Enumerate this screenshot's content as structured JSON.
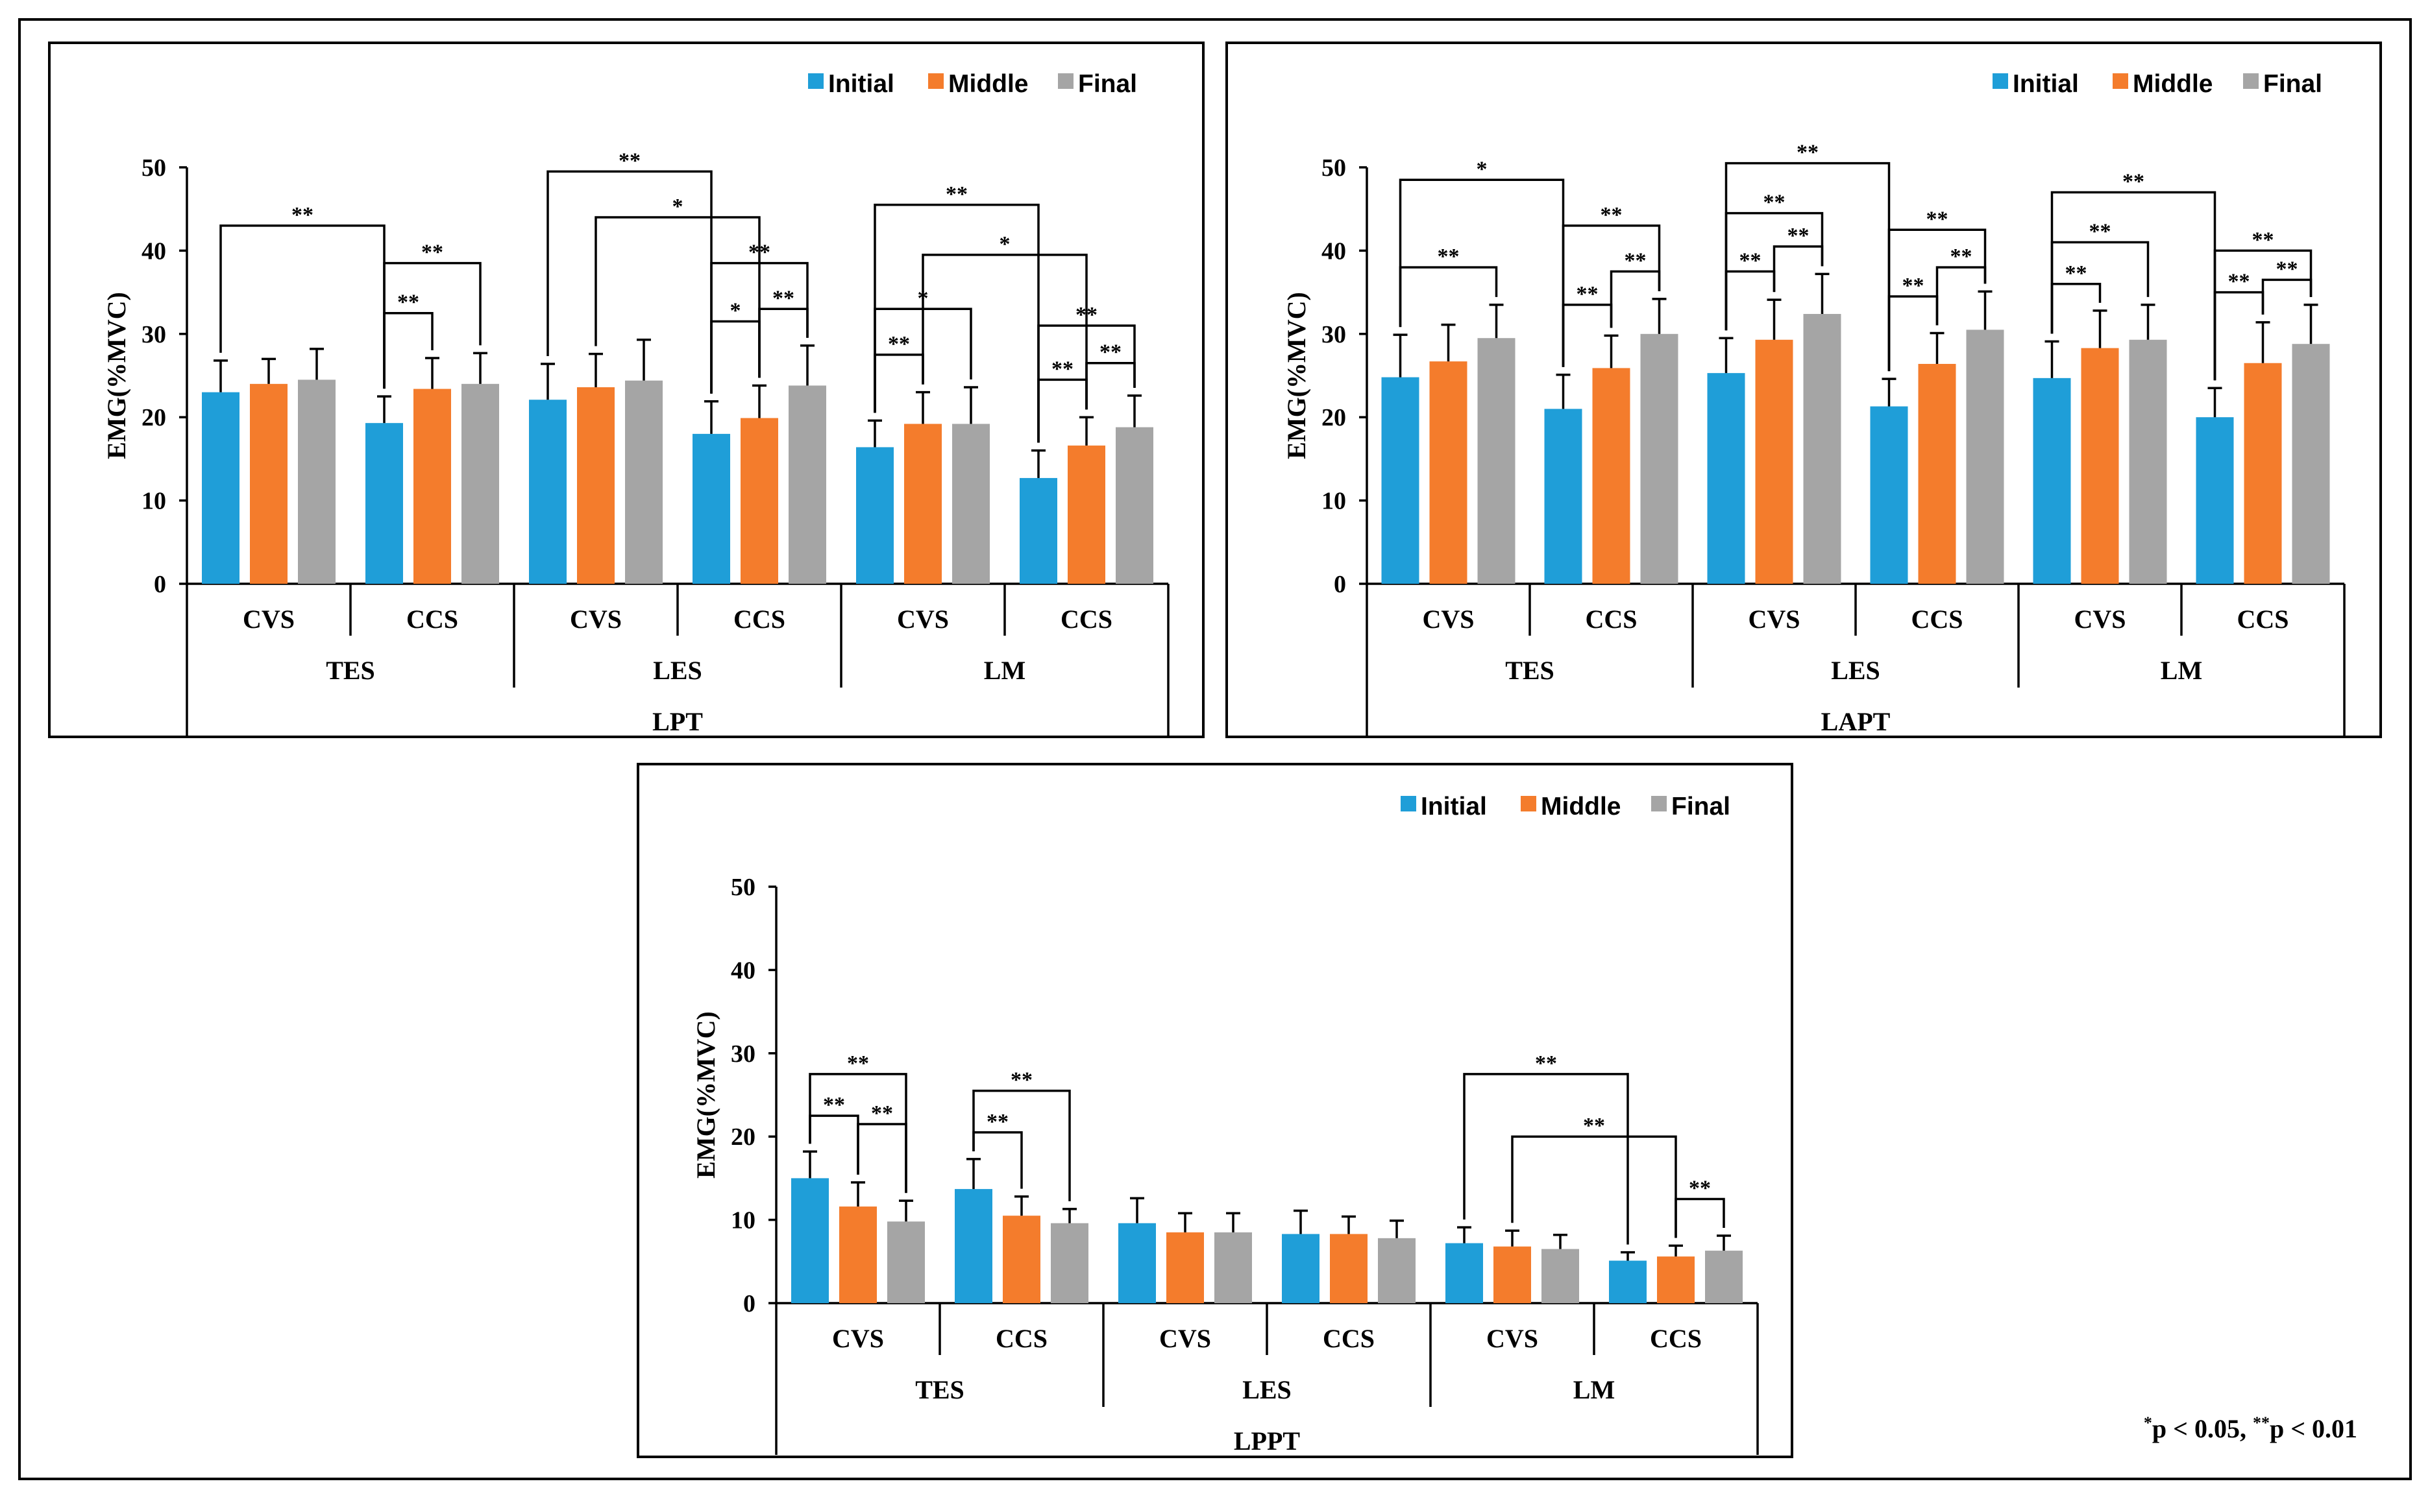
{
  "legend": [
    "Initial",
    "Middle",
    "Final"
  ],
  "colors": {
    "Initial": "#1f9ed8",
    "Middle": "#f47c2c",
    "Final": "#a5a5a5"
  },
  "footnote": {
    "mark1": "*",
    "text1": "p < 0.05, ",
    "mark2": "**",
    "text2": "p < 0.01"
  },
  "chart_data": [
    {
      "type": "bar",
      "title": "LPT",
      "ylabel": "EMG(%MVC)",
      "ylim": [
        0,
        50
      ],
      "yticks": [
        0,
        10,
        20,
        30,
        40,
        50
      ],
      "muscles": [
        "TES",
        "LES",
        "LM"
      ],
      "conditions": [
        "CVS",
        "CCS"
      ],
      "series": [
        {
          "name": "Initial",
          "values": [
            23.0,
            19.3,
            22.1,
            18.0,
            16.4,
            12.7
          ],
          "errors": [
            3.8,
            3.2,
            4.3,
            3.9,
            3.2,
            3.3
          ]
        },
        {
          "name": "Middle",
          "values": [
            24.0,
            23.4,
            23.6,
            19.9,
            19.2,
            16.6
          ],
          "errors": [
            3.0,
            3.7,
            4.0,
            3.9,
            3.8,
            3.4
          ]
        },
        {
          "name": "Final",
          "values": [
            24.5,
            24.0,
            24.4,
            23.8,
            19.2,
            18.8
          ],
          "errors": [
            3.7,
            3.7,
            4.9,
            4.8,
            4.4,
            3.8
          ]
        }
      ],
      "significance": [
        {
          "from": [
            0,
            0
          ],
          "to": [
            1,
            0
          ],
          "label": "**",
          "y": 43.0
        },
        {
          "from": [
            1,
            0
          ],
          "to": [
            1,
            1
          ],
          "label": "**",
          "y": 32.5
        },
        {
          "from": [
            1,
            0
          ],
          "to": [
            1,
            2
          ],
          "label": "**",
          "y": 38.5
        },
        {
          "from": [
            2,
            0
          ],
          "to": [
            3,
            0
          ],
          "label": "**",
          "y": 49.5
        },
        {
          "from": [
            2,
            1
          ],
          "to": [
            3,
            1
          ],
          "label": "*",
          "y": 44.0
        },
        {
          "from": [
            3,
            0
          ],
          "to": [
            3,
            1
          ],
          "label": "*",
          "y": 31.5
        },
        {
          "from": [
            3,
            0
          ],
          "to": [
            3,
            2
          ],
          "label": "**",
          "y": 38.5
        },
        {
          "from": [
            3,
            1
          ],
          "to": [
            3,
            2
          ],
          "label": "**",
          "y": 33.0
        },
        {
          "from": [
            4,
            0
          ],
          "to": [
            5,
            0
          ],
          "label": "**",
          "y": 45.5
        },
        {
          "from": [
            4,
            1
          ],
          "to": [
            5,
            1
          ],
          "label": "*",
          "y": 39.5
        },
        {
          "from": [
            4,
            0
          ],
          "to": [
            4,
            1
          ],
          "label": "**",
          "y": 27.5
        },
        {
          "from": [
            4,
            0
          ],
          "to": [
            4,
            2
          ],
          "label": "*",
          "y": 33.0
        },
        {
          "from": [
            5,
            0
          ],
          "to": [
            5,
            1
          ],
          "label": "**",
          "y": 24.5
        },
        {
          "from": [
            5,
            0
          ],
          "to": [
            5,
            2
          ],
          "label": "**",
          "y": 31.0
        },
        {
          "from": [
            5,
            1
          ],
          "to": [
            5,
            2
          ],
          "label": "**",
          "y": 26.5
        }
      ]
    },
    {
      "type": "bar",
      "title": "LAPT",
      "ylabel": "EMG(%MVC)",
      "ylim": [
        0,
        50
      ],
      "yticks": [
        0,
        10,
        20,
        30,
        40,
        50
      ],
      "muscles": [
        "TES",
        "LES",
        "LM"
      ],
      "conditions": [
        "CVS",
        "CCS"
      ],
      "series": [
        {
          "name": "Initial",
          "values": [
            24.8,
            21.0,
            25.3,
            21.3,
            24.7,
            20.0
          ],
          "errors": [
            5.1,
            4.1,
            4.2,
            3.3,
            4.4,
            3.5
          ]
        },
        {
          "name": "Middle",
          "values": [
            26.7,
            25.9,
            29.3,
            26.4,
            28.3,
            26.5
          ],
          "errors": [
            4.4,
            3.9,
            4.8,
            3.7,
            4.5,
            4.9
          ]
        },
        {
          "name": "Final",
          "values": [
            29.5,
            30.0,
            32.4,
            30.5,
            29.3,
            28.8
          ],
          "errors": [
            4.0,
            4.2,
            4.8,
            4.6,
            4.2,
            4.7
          ]
        }
      ],
      "significance": [
        {
          "from": [
            0,
            0
          ],
          "to": [
            1,
            0
          ],
          "label": "*",
          "y": 48.5
        },
        {
          "from": [
            0,
            0
          ],
          "to": [
            0,
            2
          ],
          "label": "**",
          "y": 38.0
        },
        {
          "from": [
            1,
            0
          ],
          "to": [
            1,
            1
          ],
          "label": "**",
          "y": 33.5
        },
        {
          "from": [
            1,
            0
          ],
          "to": [
            1,
            2
          ],
          "label": "**",
          "y": 43.0
        },
        {
          "from": [
            1,
            1
          ],
          "to": [
            1,
            2
          ],
          "label": "**",
          "y": 37.5
        },
        {
          "from": [
            2,
            0
          ],
          "to": [
            3,
            0
          ],
          "label": "**",
          "y": 50.5
        },
        {
          "from": [
            2,
            0
          ],
          "to": [
            2,
            2
          ],
          "label": "**",
          "y": 44.5
        },
        {
          "from": [
            2,
            0
          ],
          "to": [
            2,
            1
          ],
          "label": "**",
          "y": 37.5
        },
        {
          "from": [
            2,
            1
          ],
          "to": [
            2,
            2
          ],
          "label": "**",
          "y": 40.5
        },
        {
          "from": [
            3,
            0
          ],
          "to": [
            3,
            1
          ],
          "label": "**",
          "y": 34.5
        },
        {
          "from": [
            3,
            0
          ],
          "to": [
            3,
            2
          ],
          "label": "**",
          "y": 42.5
        },
        {
          "from": [
            3,
            1
          ],
          "to": [
            3,
            2
          ],
          "label": "**",
          "y": 38.0
        },
        {
          "from": [
            4,
            0
          ],
          "to": [
            5,
            0
          ],
          "label": "**",
          "y": 47.0
        },
        {
          "from": [
            4,
            0
          ],
          "to": [
            4,
            2
          ],
          "label": "**",
          "y": 41.0
        },
        {
          "from": [
            4,
            0
          ],
          "to": [
            4,
            1
          ],
          "label": "**",
          "y": 36.0
        },
        {
          "from": [
            5,
            0
          ],
          "to": [
            5,
            1
          ],
          "label": "**",
          "y": 35.0
        },
        {
          "from": [
            5,
            0
          ],
          "to": [
            5,
            2
          ],
          "label": "**",
          "y": 40.0
        },
        {
          "from": [
            5,
            1
          ],
          "to": [
            5,
            2
          ],
          "label": "**",
          "y": 36.5
        }
      ]
    },
    {
      "type": "bar",
      "title": "LPPT",
      "ylabel": "EMG(%MVC)",
      "ylim": [
        0,
        50
      ],
      "yticks": [
        0,
        10,
        20,
        30,
        40,
        50
      ],
      "muscles": [
        "TES",
        "LES",
        "LM"
      ],
      "conditions": [
        "CVS",
        "CCS"
      ],
      "series": [
        {
          "name": "Initial",
          "values": [
            15.0,
            13.7,
            9.6,
            8.3,
            7.2,
            5.1
          ],
          "errors": [
            3.2,
            3.6,
            3.0,
            2.8,
            1.9,
            1.0
          ]
        },
        {
          "name": "Middle",
          "values": [
            11.6,
            10.5,
            8.5,
            8.3,
            6.8,
            5.6
          ],
          "errors": [
            2.9,
            2.3,
            2.3,
            2.1,
            1.9,
            1.3
          ]
        },
        {
          "name": "Final",
          "values": [
            9.8,
            9.6,
            8.5,
            7.8,
            6.5,
            6.3
          ],
          "errors": [
            2.5,
            1.7,
            2.3,
            2.1,
            1.7,
            1.8
          ]
        }
      ],
      "significance": [
        {
          "from": [
            0,
            0
          ],
          "to": [
            0,
            2
          ],
          "label": "**",
          "y": 27.5
        },
        {
          "from": [
            0,
            0
          ],
          "to": [
            0,
            1
          ],
          "label": "**",
          "y": 22.5
        },
        {
          "from": [
            0,
            1
          ],
          "to": [
            0,
            2
          ],
          "label": "**",
          "y": 21.5
        },
        {
          "from": [
            1,
            0
          ],
          "to": [
            1,
            2
          ],
          "label": "**",
          "y": 25.5
        },
        {
          "from": [
            1,
            0
          ],
          "to": [
            1,
            1
          ],
          "label": "**",
          "y": 20.5
        },
        {
          "from": [
            4,
            0
          ],
          "to": [
            5,
            0
          ],
          "label": "**",
          "y": 27.5
        },
        {
          "from": [
            4,
            1
          ],
          "to": [
            5,
            1
          ],
          "label": "**",
          "y": 20.0
        },
        {
          "from": [
            5,
            1
          ],
          "to": [
            5,
            2
          ],
          "label": "**",
          "y": 12.5
        }
      ]
    }
  ]
}
